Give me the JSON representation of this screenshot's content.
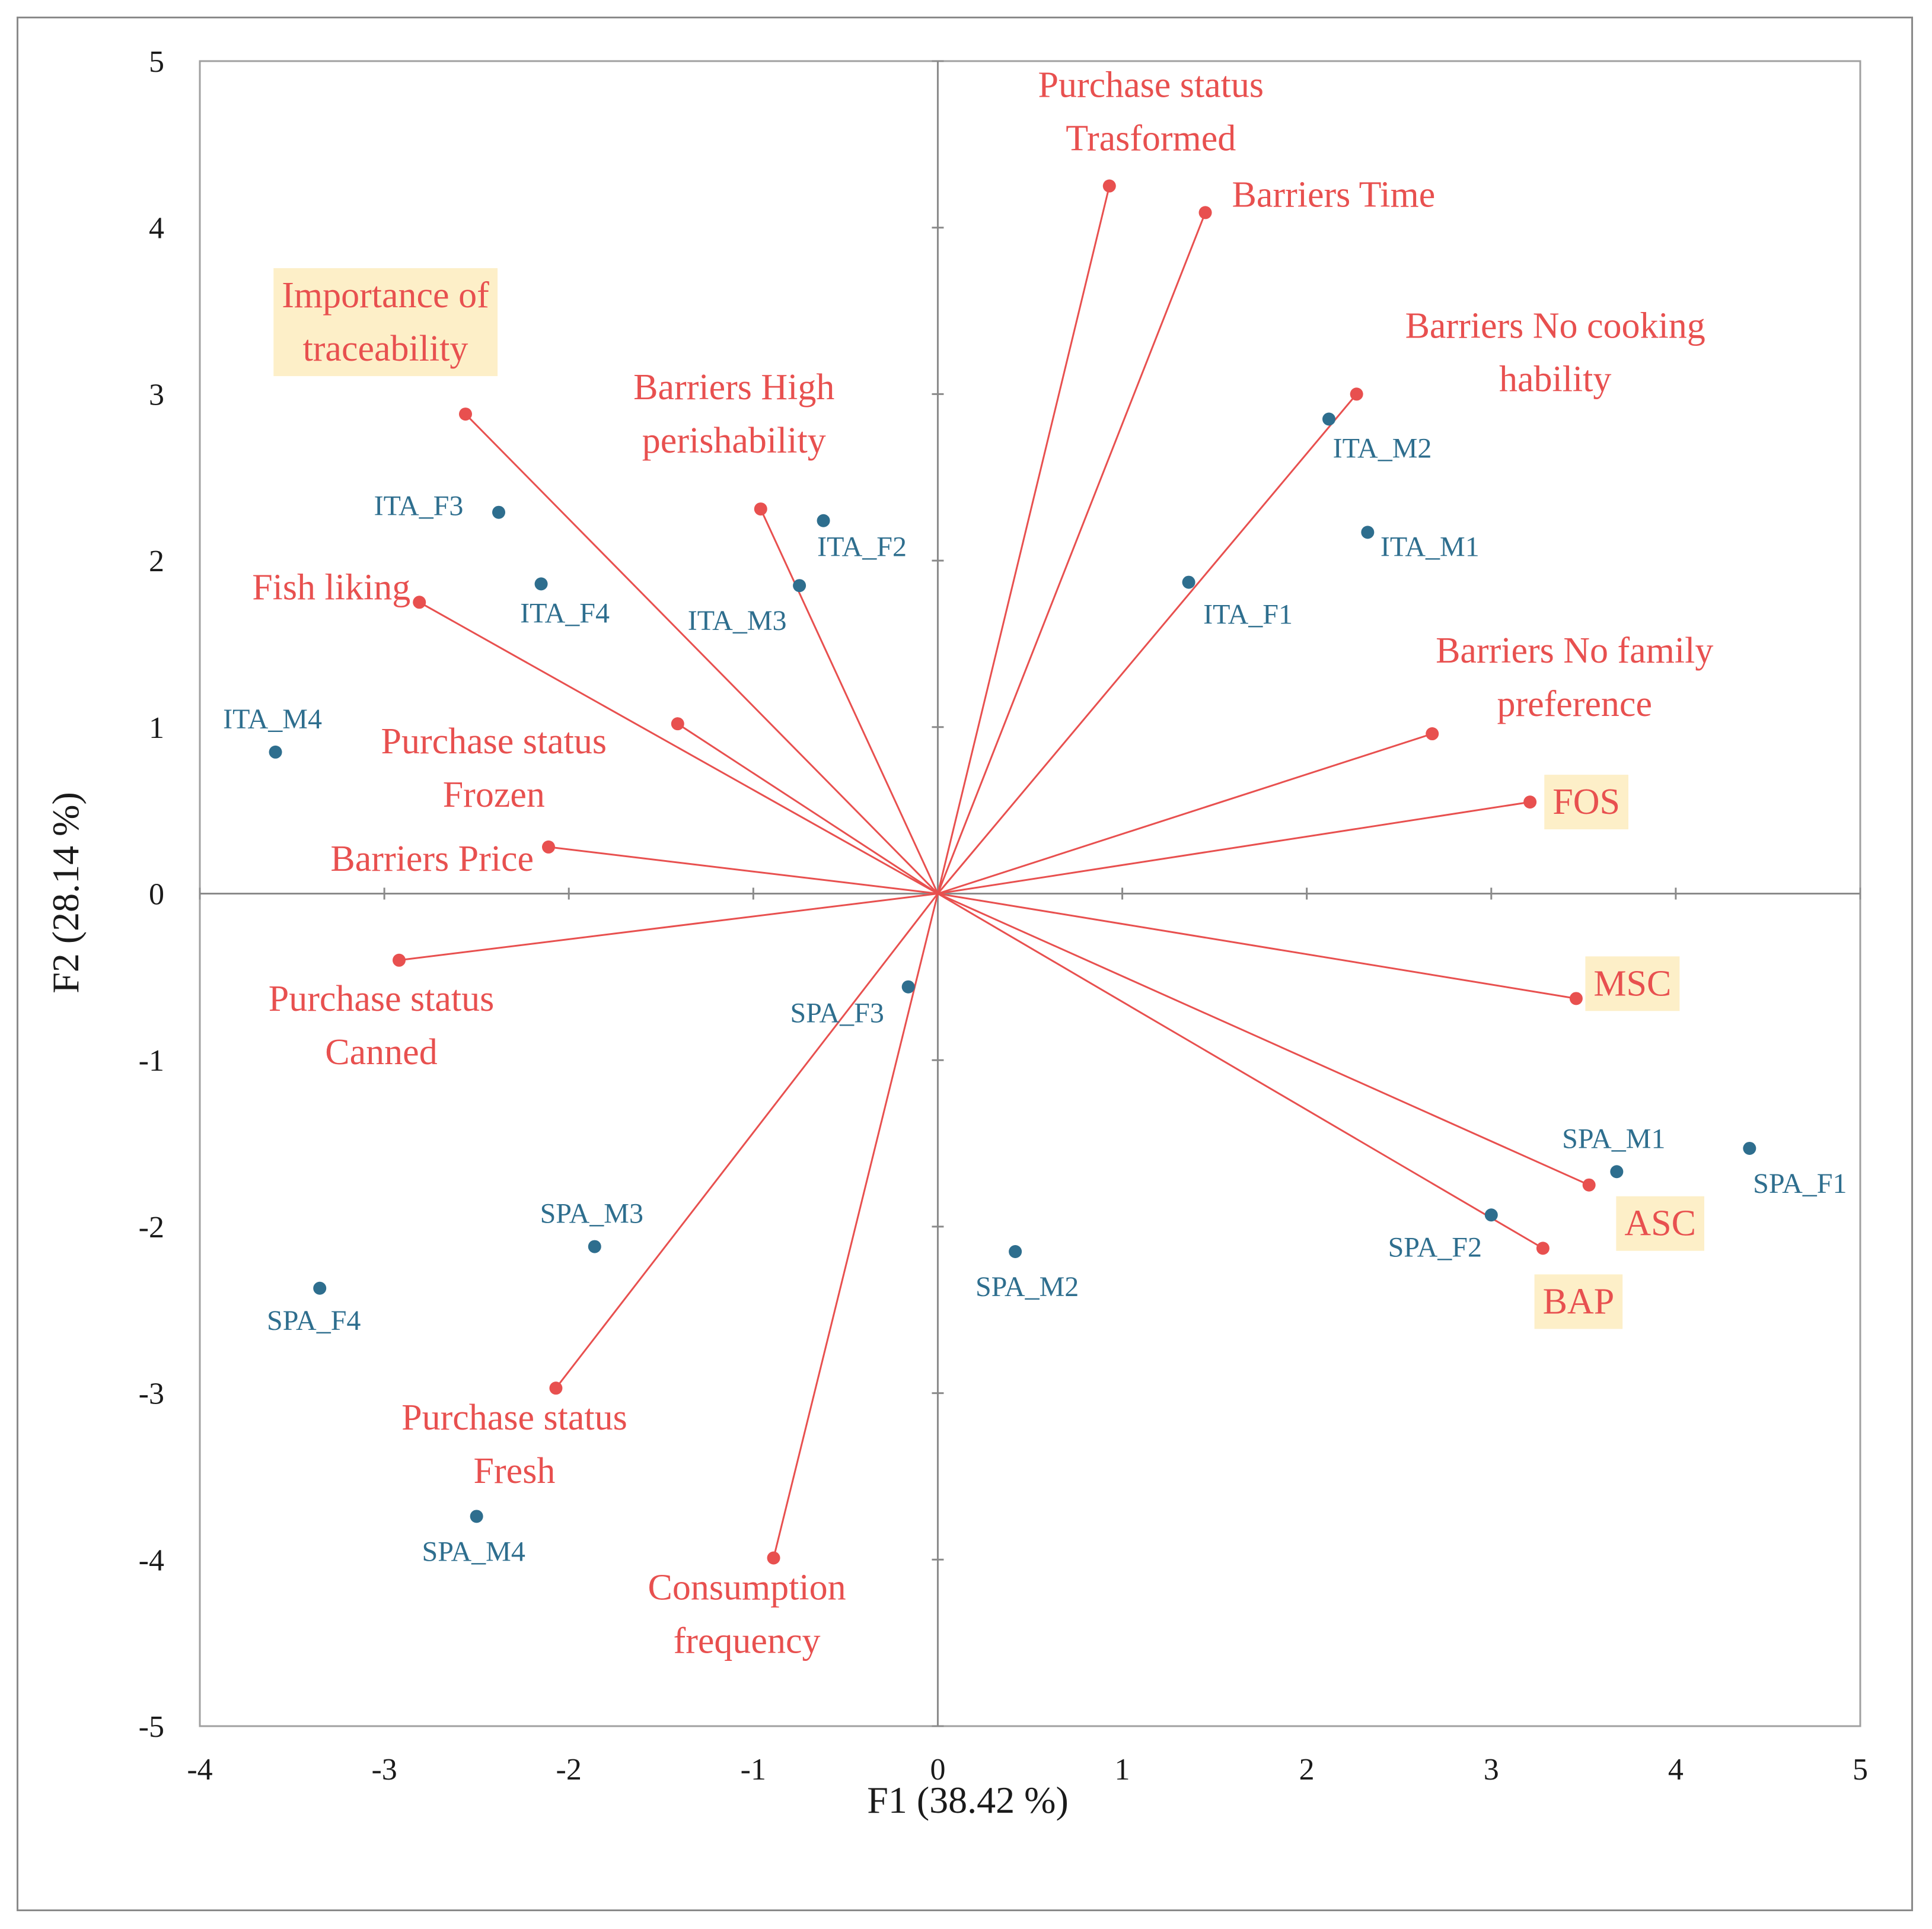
{
  "chart_data": {
    "type": "scatter",
    "subtype": "biplot",
    "xlabel": "F1 (38.42 %)",
    "ylabel": "F2 (28.14 %)",
    "xlim": [
      -4,
      5
    ],
    "ylim": [
      -5,
      5
    ],
    "x_ticks": [
      -4,
      -3,
      -2,
      -1,
      0,
      1,
      2,
      3,
      4,
      5
    ],
    "y_ticks": [
      -5,
      -4,
      -3,
      -2,
      -1,
      0,
      1,
      2,
      3,
      4,
      5
    ],
    "colors": {
      "variables": "#e8504f",
      "observations": "#2e6e8e",
      "highlight": "#fdefc8",
      "axes": "#8a8a8a"
    },
    "variables": [
      {
        "lines": [
          "Purchase status",
          "Trasformed"
        ],
        "x": 0.93,
        "y": 4.25,
        "highlight": false
      },
      {
        "lines": [
          "Barriers Time"
        ],
        "x": 1.45,
        "y": 4.09,
        "highlight": false
      },
      {
        "lines": [
          "Barriers No cooking",
          "hability"
        ],
        "x": 2.27,
        "y": 3.0,
        "highlight": false
      },
      {
        "lines": [
          "Importance of",
          "traceability"
        ],
        "x": -2.56,
        "y": 2.88,
        "highlight": true
      },
      {
        "lines": [
          "Barriers High",
          "perishability"
        ],
        "x": -0.96,
        "y": 2.31,
        "highlight": false
      },
      {
        "lines": [
          "Fish liking"
        ],
        "x": -2.81,
        "y": 1.75,
        "highlight": false
      },
      {
        "lines": [
          "Purchase status",
          "Frozen"
        ],
        "x": -1.41,
        "y": 1.02,
        "highlight": false
      },
      {
        "lines": [
          "Barriers No family",
          "preference"
        ],
        "x": 2.68,
        "y": 0.96,
        "highlight": false
      },
      {
        "lines": [
          "FOS"
        ],
        "x": 3.21,
        "y": 0.55,
        "highlight": true
      },
      {
        "lines": [
          "Barriers Price"
        ],
        "x": -2.11,
        "y": 0.28,
        "highlight": false
      },
      {
        "lines": [
          "Purchase status",
          "Canned"
        ],
        "x": -2.92,
        "y": -0.4,
        "highlight": false
      },
      {
        "lines": [
          "MSC"
        ],
        "x": 3.46,
        "y": -0.63,
        "highlight": true
      },
      {
        "lines": [
          "ASC"
        ],
        "x": 3.53,
        "y": -1.75,
        "highlight": true
      },
      {
        "lines": [
          "BAP"
        ],
        "x": 3.28,
        "y": -2.13,
        "highlight": true
      },
      {
        "lines": [
          "Purchase status",
          "Fresh"
        ],
        "x": -2.07,
        "y": -2.97,
        "highlight": false
      },
      {
        "lines": [
          "Consumption",
          "frequency"
        ],
        "x": -0.89,
        "y": -3.99,
        "highlight": false
      }
    ],
    "observations": [
      {
        "name": "ITA_M2",
        "x": 2.12,
        "y": 2.85
      },
      {
        "name": "ITA_M1",
        "x": 2.33,
        "y": 2.17
      },
      {
        "name": "ITA_F1",
        "x": 1.36,
        "y": 1.87
      },
      {
        "name": "ITA_F2",
        "x": -0.62,
        "y": 2.24
      },
      {
        "name": "ITA_M3",
        "x": -0.75,
        "y": 1.85
      },
      {
        "name": "ITA_F3",
        "x": -2.38,
        "y": 2.29
      },
      {
        "name": "ITA_F4",
        "x": -2.15,
        "y": 1.86
      },
      {
        "name": "ITA_M4",
        "x": -3.59,
        "y": 0.85
      },
      {
        "name": "SPA_F3",
        "x": -0.16,
        "y": -0.56
      },
      {
        "name": "SPA_M1",
        "x": 3.68,
        "y": -1.67
      },
      {
        "name": "SPA_F1",
        "x": 4.4,
        "y": -1.53
      },
      {
        "name": "SPA_F2",
        "x": 3.0,
        "y": -1.93
      },
      {
        "name": "SPA_M2",
        "x": 0.42,
        "y": -2.15
      },
      {
        "name": "SPA_M3",
        "x": -1.86,
        "y": -2.12
      },
      {
        "name": "SPA_F4",
        "x": -3.35,
        "y": -2.37
      },
      {
        "name": "SPA_M4",
        "x": -2.5,
        "y": -3.74
      }
    ]
  }
}
